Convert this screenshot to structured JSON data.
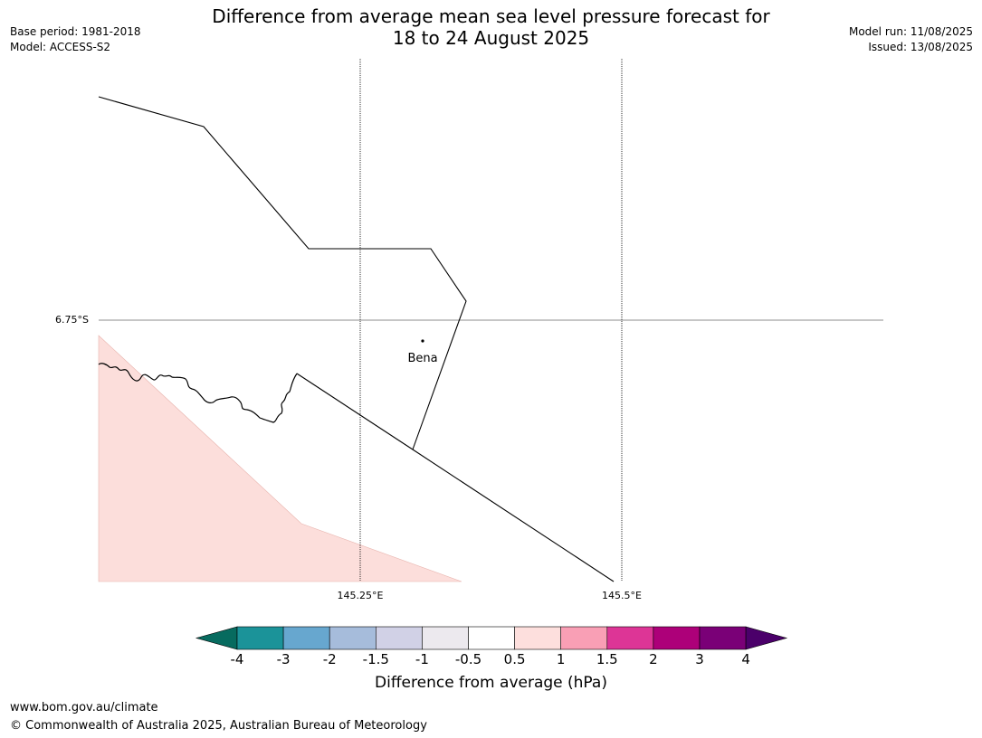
{
  "title_line1": "Difference from average mean sea level pressure forecast for",
  "title_line2": "18 to 24 August 2025",
  "base_period": "Base period: 1981-2018",
  "model": "Model: ACCESS-S2",
  "model_run": "Model run: 11/08/2025",
  "issued": "Issued: 13/08/2025",
  "map": {
    "lat_labels": [
      "6.75°S"
    ],
    "lon_labels": [
      "145.25°E",
      "145.5°E"
    ],
    "town": "Bena",
    "shaded_region_color": "#fcdedb"
  },
  "colorbar": {
    "label": "Difference from average (hPa)",
    "ticks": [
      "-4",
      "-3",
      "-2",
      "-1.5",
      "-1",
      "-0.5",
      "0.5",
      "1",
      "1.5",
      "2",
      "3",
      "4"
    ],
    "colors": [
      "#076b5f",
      "#1b9399",
      "#67a7cf",
      "#a6bcdb",
      "#d1d1e6",
      "#ece9ee",
      "#ffffff",
      "#fddfdd",
      "#f99fb5",
      "#dd3596",
      "#ad0079",
      "#7a0077",
      "#4b006a"
    ]
  },
  "footer": {
    "url": "www.bom.gov.au/climate",
    "copyright": "© Commonwealth of Australia 2025, Australian Bureau of Meteorology"
  }
}
